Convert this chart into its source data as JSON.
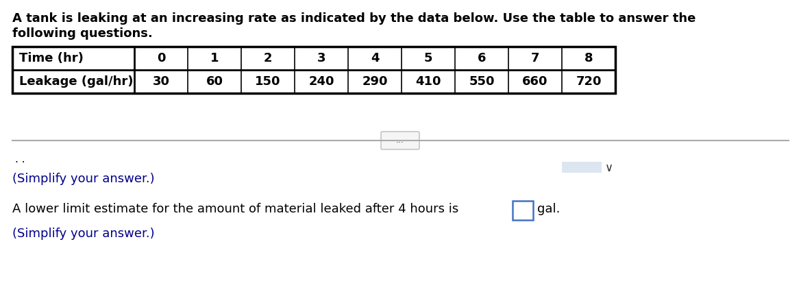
{
  "intro_text_line1": "A tank is leaking at an increasing rate as indicated by the data below. Use the table to answer the",
  "intro_text_line2": "following questions.",
  "table_headers": [
    "Time (hr)",
    "0",
    "1",
    "2",
    "3",
    "4",
    "5",
    "6",
    "7",
    "8"
  ],
  "table_row2_label": "Leakage (gal/hr)",
  "table_row2_values": [
    "30",
    "60",
    "150",
    "240",
    "290",
    "410",
    "550",
    "660",
    "720"
  ],
  "divider_text": "...",
  "two_dots": ". .",
  "simplify1": "(Simplify your answer.)",
  "lower_limit_text": "A lower limit estimate for the amount of material leaked after 4 hours is",
  "lower_limit_unit": "gal.",
  "simplify2": "(Simplify your answer.)",
  "bg_color": "#ffffff",
  "text_color": "#000000",
  "blue_text_color": "#00008B",
  "table_border_color": "#000000",
  "divider_color": "#aaaaaa",
  "dropdown_box_color": "#dce6f0",
  "answer_box_border": "#4472c4"
}
